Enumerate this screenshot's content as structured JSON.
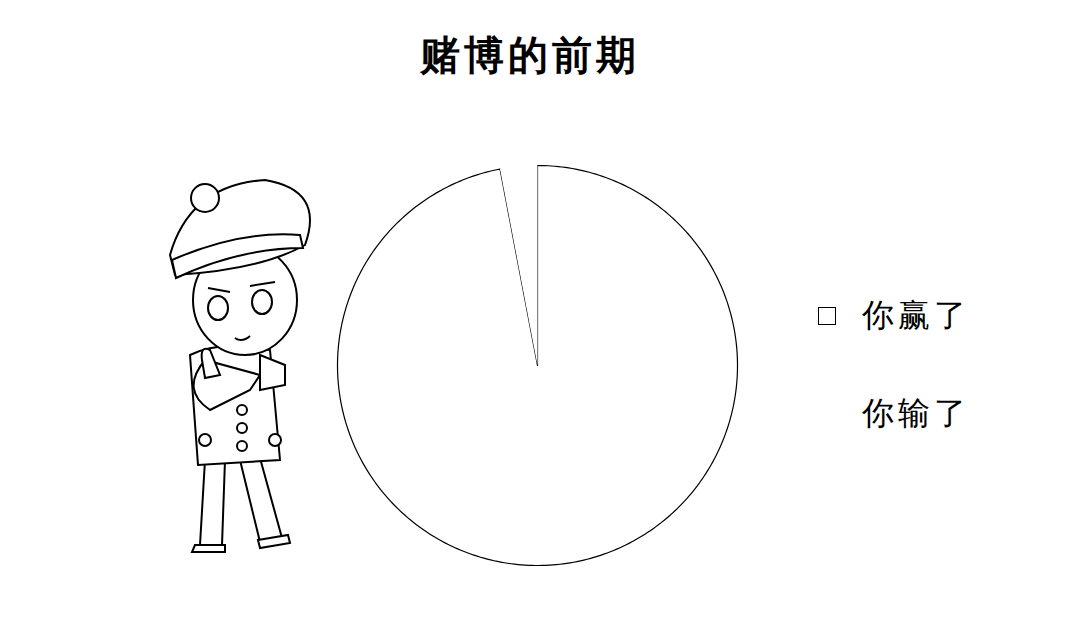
{
  "chart_data": {
    "type": "pie",
    "title": "赌博的前期",
    "categories": [
      "你赢了",
      "你输了"
    ],
    "values": [
      97,
      3
    ],
    "colors": [
      "#ffffff",
      "#ffffff"
    ],
    "legend": "right"
  }
}
